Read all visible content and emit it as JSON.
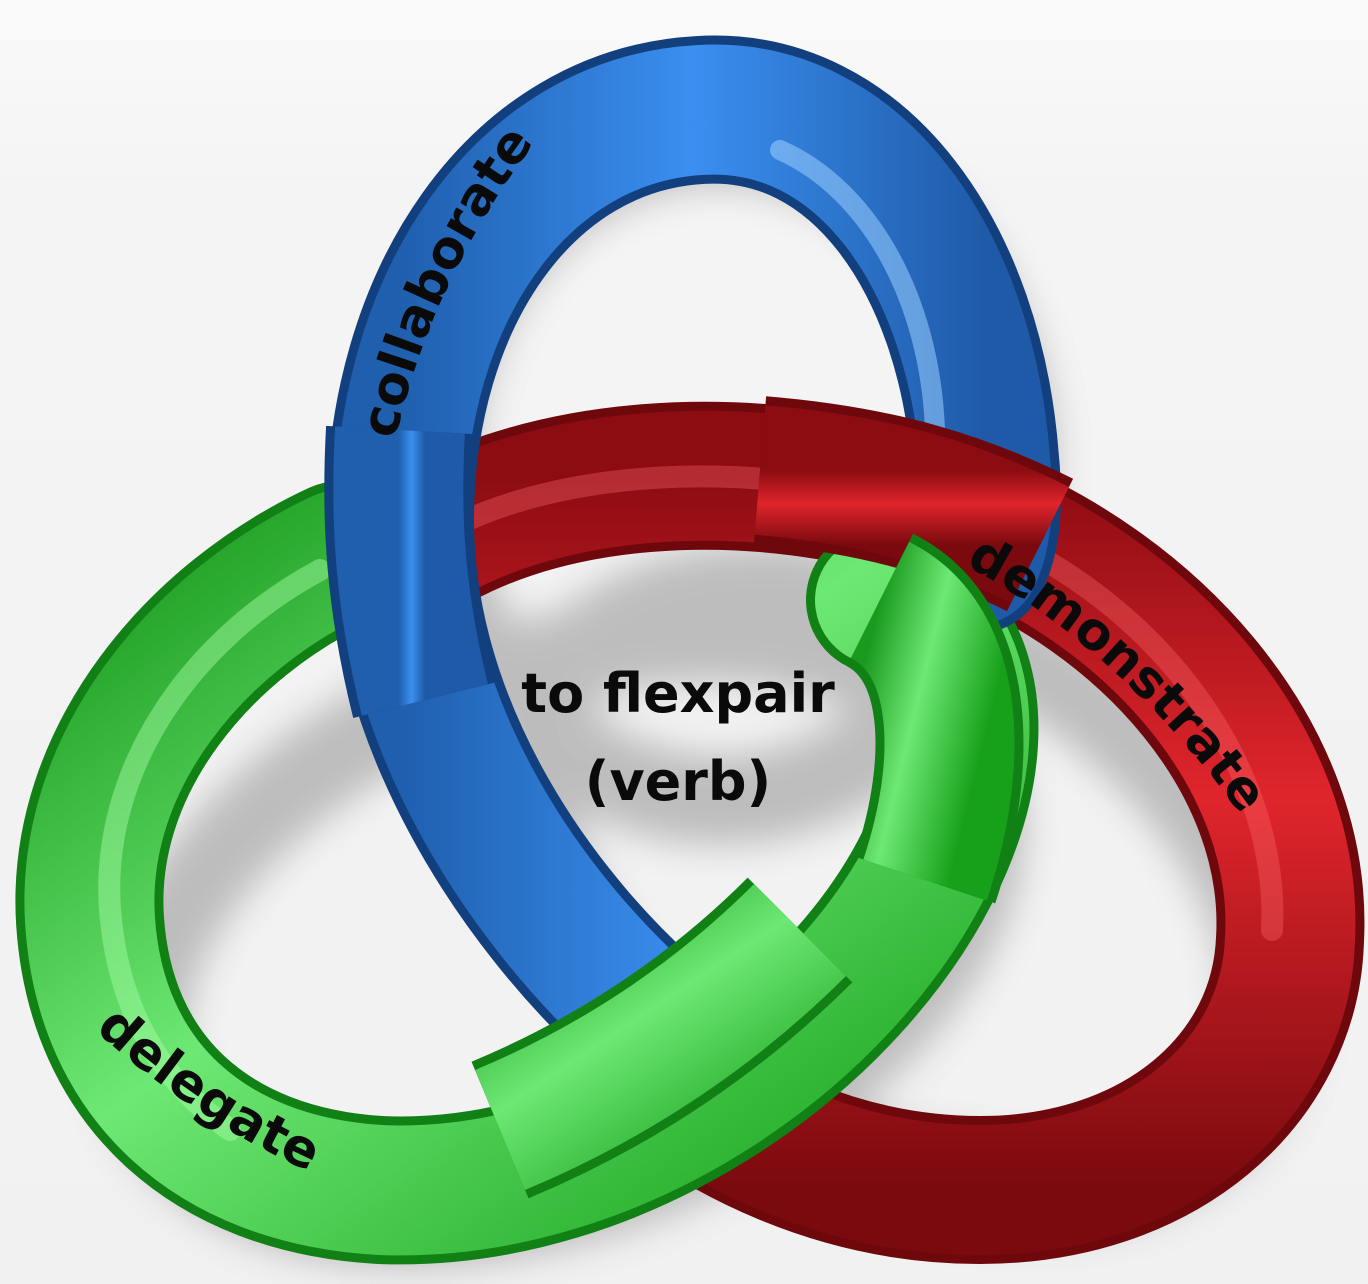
{
  "diagram": {
    "center": {
      "line1": "to flexpair",
      "line2": "(verb)"
    },
    "loops": [
      {
        "label": "collaborate",
        "color": "#2f7fd6"
      },
      {
        "label": "demonstrate",
        "color": "#d41e26"
      },
      {
        "label": "delegate",
        "color": "#26c22c"
      }
    ]
  }
}
